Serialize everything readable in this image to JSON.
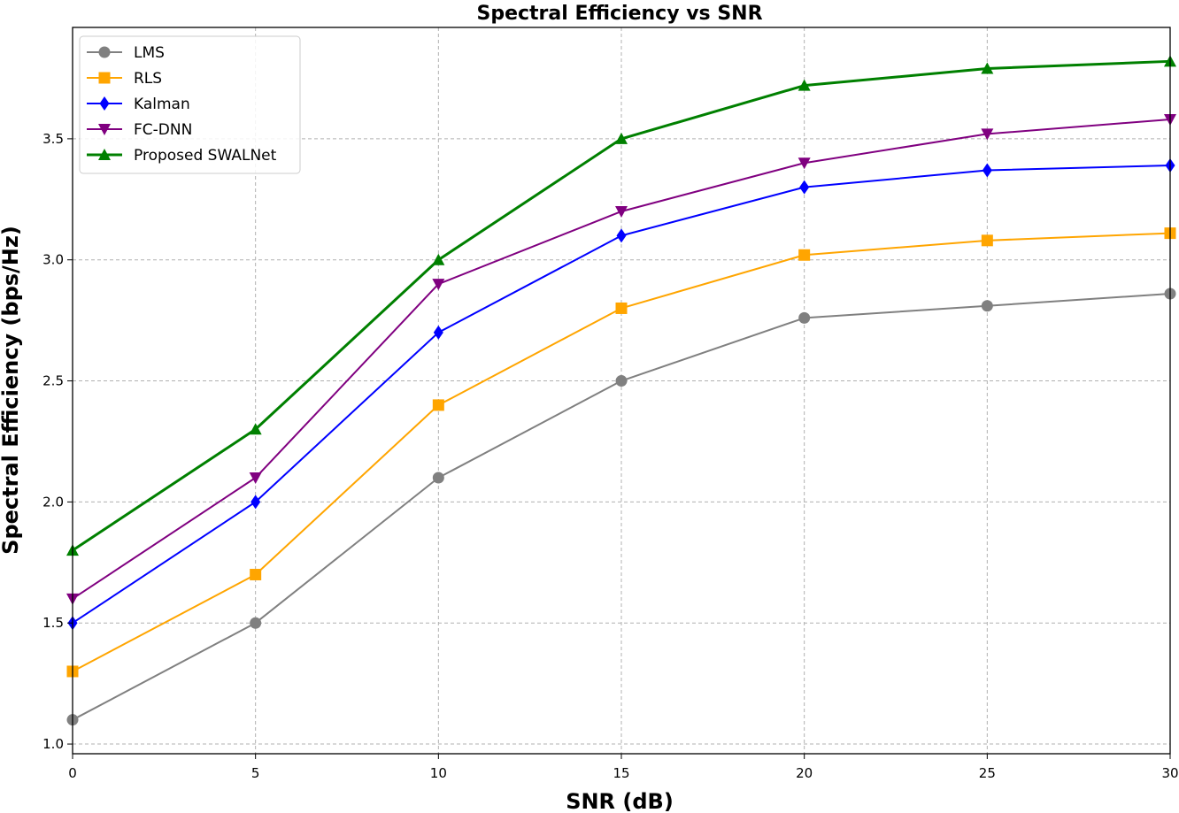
{
  "chart_data": {
    "type": "line",
    "title": "Spectral Efficiency vs SNR",
    "xlabel": "SNR (dB)",
    "ylabel": "Spectral Efficiency (bps/Hz)",
    "x": [
      0,
      5,
      10,
      15,
      20,
      25,
      30
    ],
    "xlim": [
      0,
      30
    ],
    "ylim": [
      0.96,
      3.96
    ],
    "xticks": [
      "0",
      "5",
      "10",
      "15",
      "20",
      "25",
      "30"
    ],
    "yticks": [
      "1.0",
      "1.5",
      "2.0",
      "2.5",
      "3.0",
      "3.5"
    ],
    "grid": true,
    "legend_position": "top-left",
    "series": [
      {
        "name": "LMS",
        "color": "#808080",
        "marker": "circle",
        "values": [
          1.1,
          1.5,
          2.1,
          2.5,
          2.76,
          2.81,
          2.86
        ]
      },
      {
        "name": "RLS",
        "color": "#ffa500",
        "marker": "square",
        "values": [
          1.3,
          1.7,
          2.4,
          2.8,
          3.02,
          3.08,
          3.11
        ]
      },
      {
        "name": "Kalman",
        "color": "#0000ff",
        "marker": "diamond",
        "values": [
          1.5,
          2.0,
          2.7,
          3.1,
          3.3,
          3.37,
          3.39
        ]
      },
      {
        "name": "FC-DNN",
        "color": "#800080",
        "marker": "triangle-down",
        "values": [
          1.6,
          2.1,
          2.9,
          3.2,
          3.4,
          3.52,
          3.58
        ]
      },
      {
        "name": "Proposed SWALNet",
        "color": "#008000",
        "marker": "triangle-up",
        "values": [
          1.8,
          2.3,
          3.0,
          3.5,
          3.72,
          3.79,
          3.82
        ]
      }
    ]
  }
}
